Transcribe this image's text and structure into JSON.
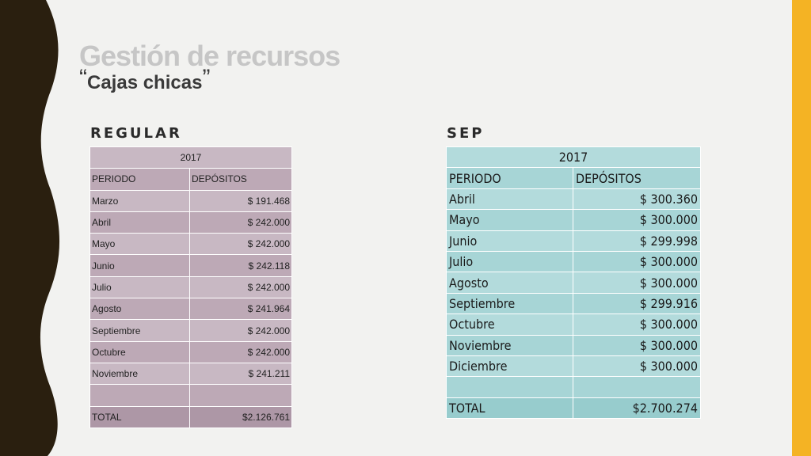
{
  "slide": {
    "title": "Gestión de recursos",
    "subtitle": "Cajas chicas",
    "open_quote": "“",
    "close_quote": "”"
  },
  "colors": {
    "left_band": "#2a1f0f",
    "right_stripe": "#f4b324",
    "regular_table": "#c8b8c3",
    "sep_table": "#b3dbdc"
  },
  "regular": {
    "heading": "REGULAR",
    "year": "2017",
    "col_periodo": "PERIODO",
    "col_depositos": "DEPÓSITOS",
    "rows": [
      {
        "periodo": "Marzo",
        "deposito": "$ 191.468"
      },
      {
        "periodo": "Abril",
        "deposito": "$ 242.000"
      },
      {
        "periodo": "Mayo",
        "deposito": "$ 242.000"
      },
      {
        "periodo": "Junio",
        "deposito": "$ 242.118"
      },
      {
        "periodo": "Julio",
        "deposito": "$ 242.000"
      },
      {
        "periodo": "Agosto",
        "deposito": "$ 241.964"
      },
      {
        "periodo": "Septiembre",
        "deposito": "$ 242.000"
      },
      {
        "periodo": "Octubre",
        "deposito": "$ 242.000"
      },
      {
        "periodo": "Noviembre",
        "deposito": "$ 241.211"
      }
    ],
    "total_label": "TOTAL",
    "total_value": "$2.126.761"
  },
  "sep": {
    "heading": "SEP",
    "year": "2017",
    "col_periodo": "PERIODO",
    "col_depositos": "DEPÓSITOS",
    "rows": [
      {
        "periodo": "Abril",
        "deposito": "$ 300.360"
      },
      {
        "periodo": "Mayo",
        "deposito": "$ 300.000"
      },
      {
        "periodo": "Junio",
        "deposito": "$ 299.998"
      },
      {
        "periodo": "Julio",
        "deposito": "$ 300.000"
      },
      {
        "periodo": "Agosto",
        "deposito": "$ 300.000"
      },
      {
        "periodo": "Septiembre",
        "deposito": "$ 299.916"
      },
      {
        "periodo": "Octubre",
        "deposito": "$ 300.000"
      },
      {
        "periodo": "Noviembre",
        "deposito": "$ 300.000"
      },
      {
        "periodo": "Diciembre",
        "deposito": "$ 300.000"
      }
    ],
    "total_label": "TOTAL",
    "total_value": "$2.700.274"
  }
}
